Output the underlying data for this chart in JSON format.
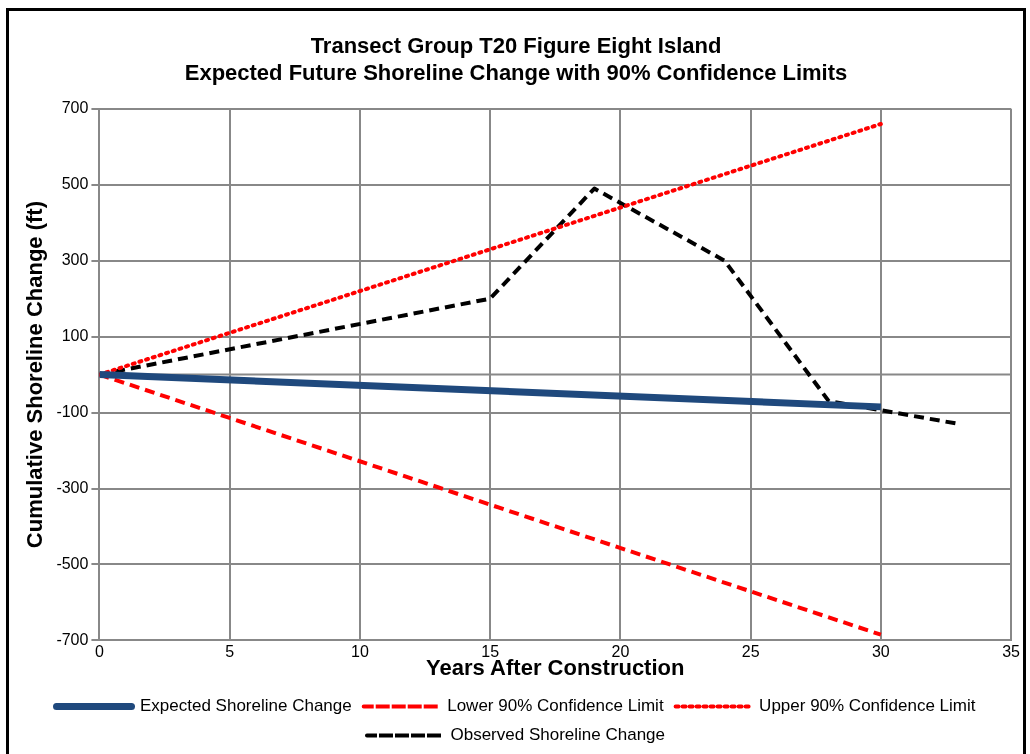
{
  "chart_data": {
    "type": "line",
    "title": [
      "Transect Group T20 Figure Eight Island",
      "Expected Future Shoreline Change with 90% Confidence Limits"
    ],
    "xlabel": "Years After Construction",
    "ylabel": "Cumulative Shoreline Change (ft)",
    "xlim": [
      0,
      35
    ],
    "xticks": [
      0,
      5,
      10,
      15,
      20,
      25,
      30,
      35
    ],
    "ylim": [
      -700,
      700
    ],
    "yticks": [
      -700,
      -500,
      -300,
      -100,
      100,
      300,
      500,
      700
    ],
    "grid": true,
    "legend": "bottom",
    "marker": "none",
    "ref_lines": [
      {
        "axis": "y",
        "value": 0,
        "label": null,
        "color": "#888888"
      }
    ],
    "series": [
      {
        "name": "Expected Shoreline Change",
        "color": "#1f497d",
        "line_style": "solid",
        "x": [
          0,
          30
        ],
        "values": [
          0,
          -85
        ]
      },
      {
        "name": "Lower 90% Confidence Limit",
        "color": "#ff0000",
        "line_style": "dashed",
        "x": [
          0,
          30
        ],
        "values": [
          0,
          -685
        ]
      },
      {
        "name": "Upper 90% Confidence Limit",
        "color": "#ff0000",
        "line_style": "dotted",
        "x": [
          0,
          30
        ],
        "values": [
          0,
          660
        ]
      },
      {
        "name": "Observed Shoreline Change",
        "color": "#000000",
        "line_style": "dashed",
        "x": [
          0,
          15,
          19,
          24,
          28,
          33
        ],
        "values": [
          0,
          200,
          490,
          300,
          -70,
          -130
        ]
      }
    ]
  }
}
